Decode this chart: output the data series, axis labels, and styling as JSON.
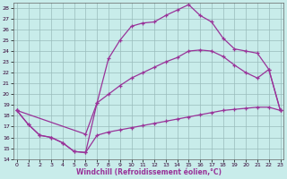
{
  "background_color": "#c8ecea",
  "grid_color": "#9abcbc",
  "line_color": "#993399",
  "xlabel": "Windchill (Refroidissement éolien,°C)",
  "curve_upper_x": [
    0,
    1,
    2,
    3,
    4,
    5,
    6,
    7,
    8,
    9,
    10,
    11,
    12,
    13,
    14,
    15,
    16,
    17,
    18,
    19,
    20,
    21,
    22,
    23
  ],
  "curve_upper_y": [
    18.5,
    17.2,
    16.2,
    16.0,
    15.5,
    14.7,
    14.6,
    19.2,
    23.3,
    25.0,
    26.3,
    26.6,
    26.7,
    27.3,
    27.8,
    28.3,
    27.3,
    26.7,
    25.2,
    24.2,
    24.0,
    23.8,
    22.3,
    18.5
  ],
  "curve_diag1_x": [
    0,
    6,
    7,
    8,
    9,
    10,
    11,
    12,
    13,
    14,
    15,
    16,
    17,
    18,
    19,
    20,
    21,
    22,
    23
  ],
  "curve_diag1_y": [
    18.5,
    16.3,
    19.2,
    20.0,
    20.8,
    21.5,
    22.0,
    22.5,
    23.0,
    23.4,
    24.0,
    24.1,
    24.0,
    23.5,
    22.7,
    22.0,
    21.5,
    22.3,
    18.5
  ],
  "curve_lower_x": [
    0,
    1,
    2,
    3,
    4,
    5,
    6,
    7,
    8,
    9,
    10,
    11,
    12,
    13,
    14,
    15,
    16,
    17,
    18,
    19,
    20,
    21,
    22,
    23
  ],
  "curve_lower_y": [
    18.5,
    17.2,
    16.2,
    16.0,
    15.5,
    14.7,
    14.6,
    16.2,
    16.5,
    16.7,
    16.9,
    17.1,
    17.3,
    17.5,
    17.7,
    17.9,
    18.1,
    18.3,
    18.5,
    18.6,
    18.7,
    18.8,
    18.8,
    18.5
  ],
  "xlim": [
    -0.3,
    23.3
  ],
  "ylim": [
    14,
    28.5
  ],
  "ytick_vals": [
    14,
    15,
    16,
    17,
    18,
    19,
    20,
    21,
    22,
    23,
    24,
    25,
    26,
    27,
    28
  ],
  "xtick_vals": [
    0,
    1,
    2,
    3,
    4,
    5,
    6,
    7,
    8,
    9,
    10,
    11,
    12,
    13,
    14,
    15,
    16,
    17,
    18,
    19,
    20,
    21,
    22,
    23
  ]
}
